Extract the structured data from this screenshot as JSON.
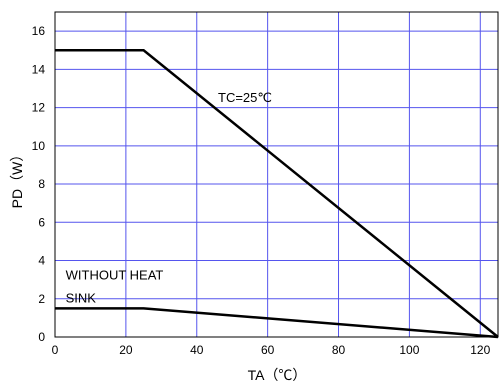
{
  "chart_data": {
    "type": "line",
    "xlabel": "TA（℃）",
    "ylabel": "PD（W）",
    "xlim": [
      0,
      125
    ],
    "ylim": [
      0,
      17
    ],
    "grid": true,
    "x_ticks": [
      0,
      20,
      40,
      60,
      80,
      100,
      120
    ],
    "y_ticks": [
      0,
      2,
      4,
      6,
      8,
      10,
      12,
      14,
      16
    ],
    "series": [
      {
        "x": [
          0,
          25,
          125
        ],
        "y": [
          15,
          15,
          0
        ]
      },
      {
        "x": [
          0,
          25,
          125
        ],
        "y": [
          1.5,
          1.5,
          0
        ]
      }
    ],
    "annotations": [
      {
        "text": "TC=25℃",
        "x": 46,
        "y": 12.3
      },
      {
        "text": "WITHOUT HEAT",
        "x": 3,
        "y": 3
      },
      {
        "text": "SINK",
        "x": 3,
        "y": 1.8
      }
    ],
    "colors": {
      "grid": "#5555ee",
      "line": "#000000",
      "frame": "#000000"
    }
  }
}
